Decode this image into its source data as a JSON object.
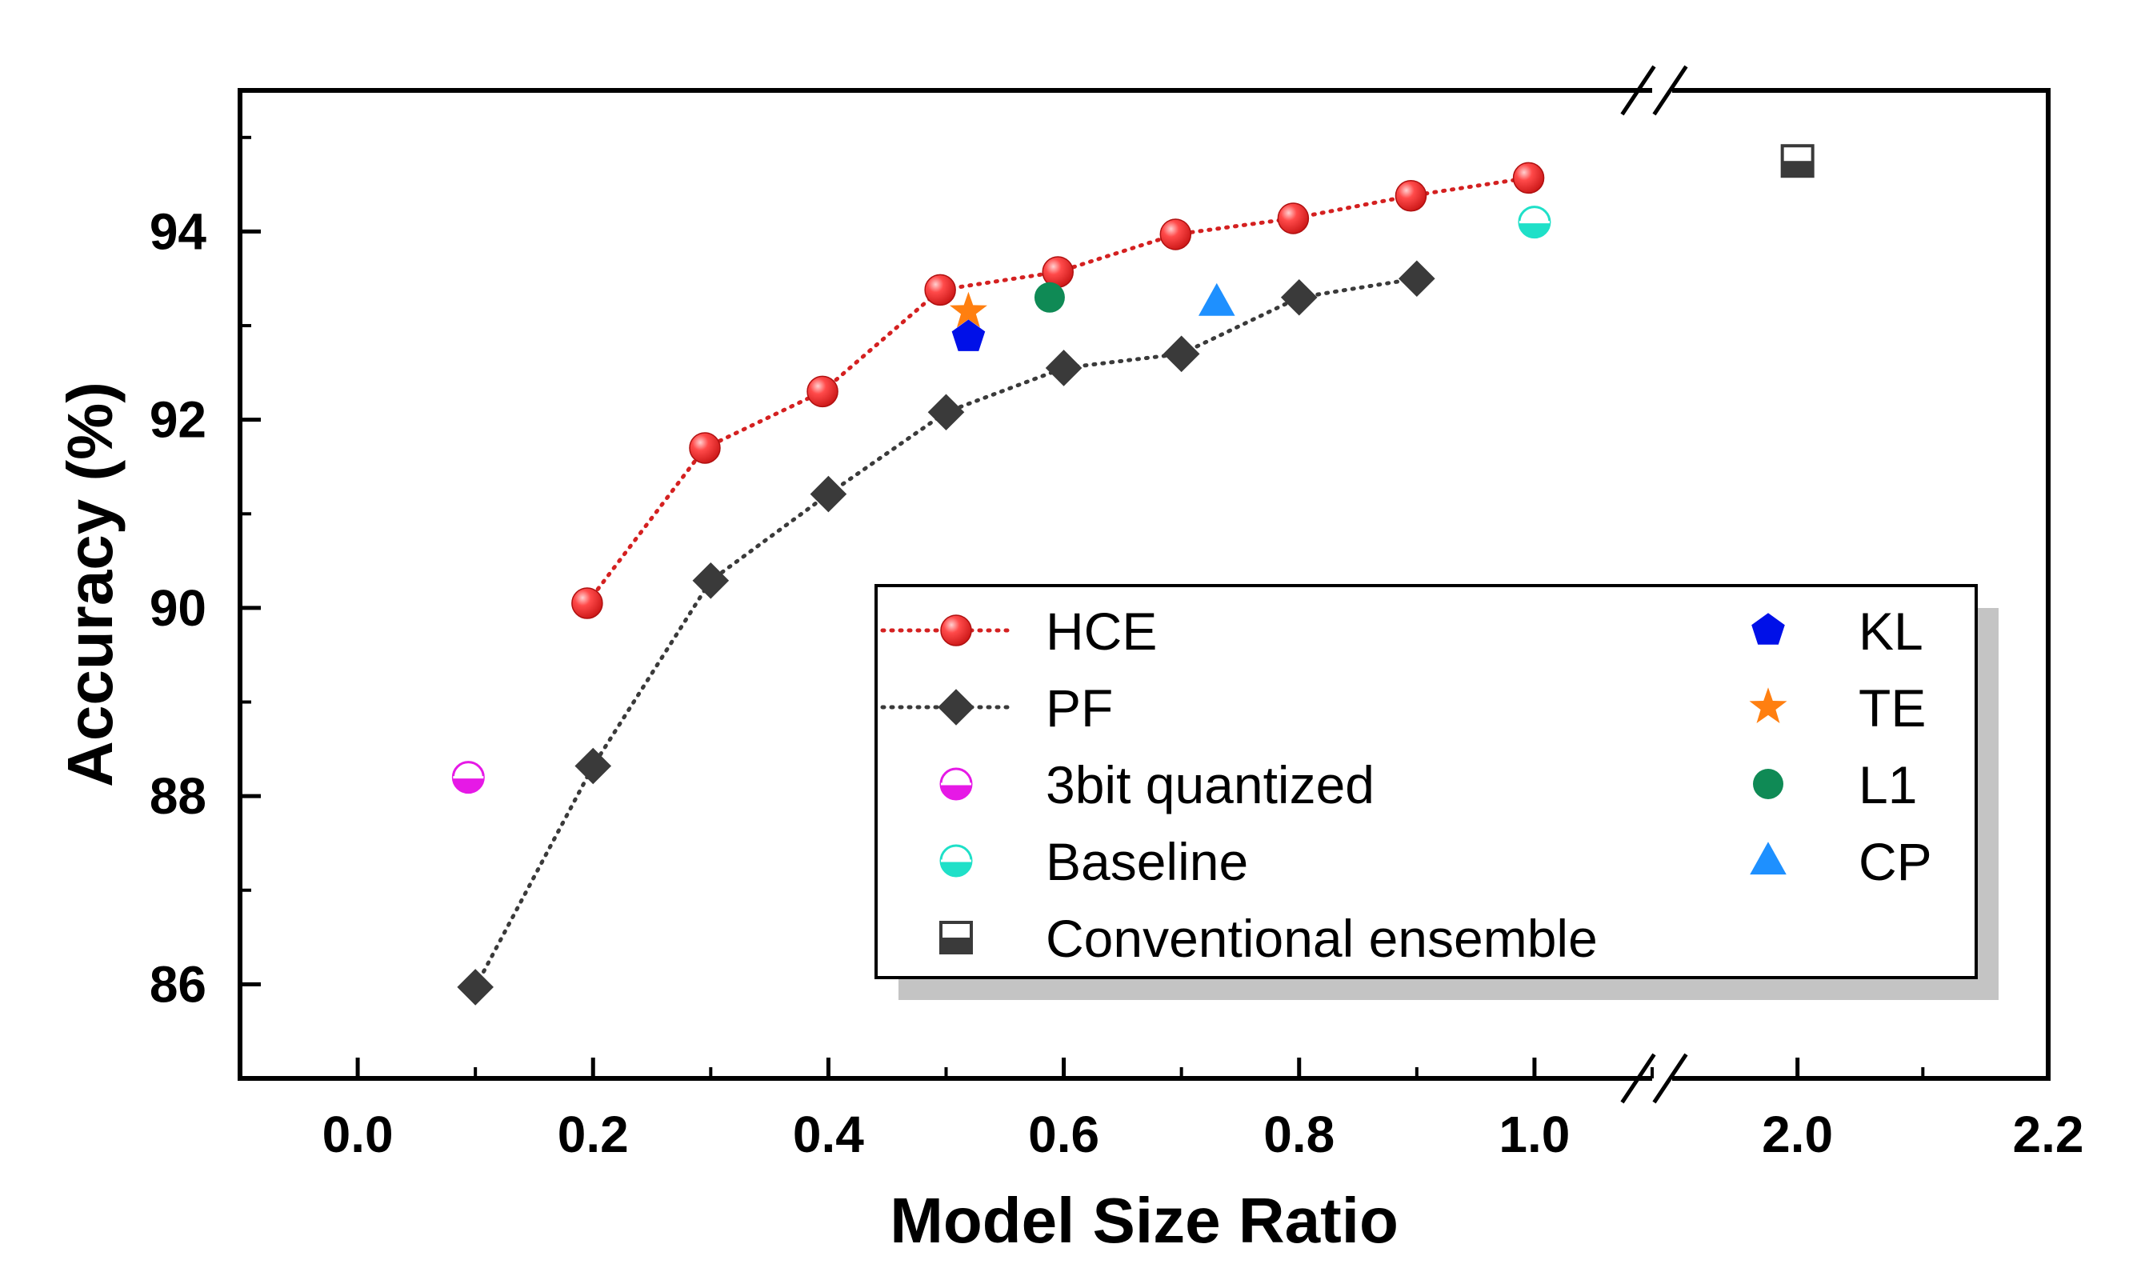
{
  "chart_data": {
    "type": "scatter",
    "xlabel": "Model Size Ratio",
    "ylabel": "Accuracy (%)",
    "xlim": [
      -0.1,
      2.2
    ],
    "ylim": [
      85,
      95.5
    ],
    "x_break": [
      1.1,
      1.9
    ],
    "x_ticks": [
      0.0,
      0.2,
      0.4,
      0.6,
      0.8,
      1.0,
      2.0,
      2.2
    ],
    "x_tick_labels": [
      "0.0",
      "0.2",
      "0.4",
      "0.6",
      "0.8",
      "1.0",
      "2.0",
      "2.2"
    ],
    "y_ticks": [
      86,
      88,
      90,
      92,
      94
    ],
    "y_tick_labels": [
      "86",
      "88",
      "90",
      "92",
      "94"
    ],
    "series": [
      {
        "name": "HCE",
        "marker": "sphere",
        "color": "#e8262a",
        "line": "dotted",
        "x": [
          0.195,
          0.295,
          0.395,
          0.495,
          0.595,
          0.695,
          0.795,
          0.895,
          0.995
        ],
        "y": [
          90.05,
          91.7,
          92.3,
          93.38,
          93.57,
          93.97,
          94.14,
          94.38,
          94.57
        ]
      },
      {
        "name": "PF",
        "marker": "diamond",
        "color": "#3a3a3a",
        "line": "dotted",
        "x": [
          0.1,
          0.2,
          0.3,
          0.4,
          0.5,
          0.6,
          0.7,
          0.8,
          0.9
        ],
        "y": [
          85.97,
          88.32,
          90.29,
          91.21,
          92.08,
          92.55,
          92.7,
          93.3,
          93.5
        ]
      },
      {
        "name": "3bit quantized",
        "marker": "half-circle",
        "color": "#e619e6",
        "x": [
          0.094
        ],
        "y": [
          88.2
        ]
      },
      {
        "name": "Baseline",
        "marker": "half-circle",
        "color": "#1fe0c8",
        "x": [
          1.0
        ],
        "y": [
          94.1
        ]
      },
      {
        "name": "Conventional ensemble",
        "marker": "half-square",
        "color": "#3a3a3a",
        "x": [
          2.0
        ],
        "y": [
          94.75
        ]
      },
      {
        "name": "KL",
        "marker": "pentagon",
        "color": "#0010e8",
        "x": [
          0.519
        ],
        "y": [
          92.88
        ]
      },
      {
        "name": "TE",
        "marker": "star",
        "color": "#ff7f10",
        "x": [
          0.519
        ],
        "y": [
          93.15
        ]
      },
      {
        "name": "L1",
        "marker": "circle",
        "color": "#0f8a55",
        "x": [
          0.588
        ],
        "y": [
          93.3
        ]
      },
      {
        "name": "CP",
        "marker": "triangle",
        "color": "#1e90ff",
        "x": [
          0.73
        ],
        "y": [
          93.25
        ]
      }
    ],
    "legend": {
      "position": "bottom-right",
      "left_column": [
        "HCE",
        "PF",
        "3bit quantized",
        "Baseline",
        "Conventional ensemble"
      ],
      "right_column": [
        "KL",
        "TE",
        "L1",
        "CP"
      ]
    }
  }
}
